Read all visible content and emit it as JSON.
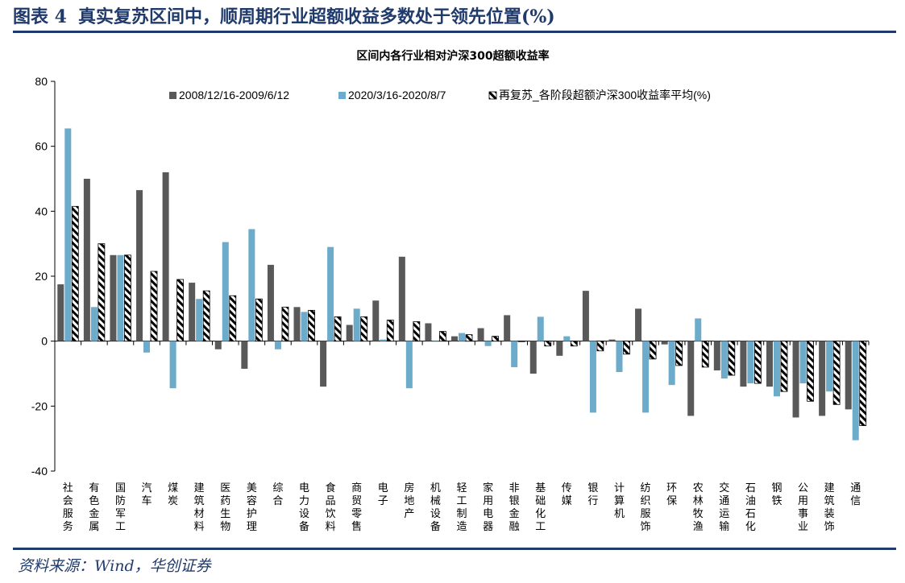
{
  "header": {
    "figure_no": "图表 4",
    "title": "真实复苏区间中，顺周期行业超额收益多数处于领先位置(%)"
  },
  "source": "资料来源：Wind，华创证券",
  "colors": {
    "header_blue": "#1f3a6b",
    "series_dark": "#595959",
    "series_light": "#6cabc9"
  },
  "chart_data": {
    "type": "bar",
    "title": "区间内各行业相对沪深300超额收益率",
    "xlabel": "",
    "ylabel": "",
    "ylim": [
      -40,
      80
    ],
    "yticks": [
      80,
      60,
      40,
      20,
      0,
      -20,
      -40
    ],
    "grid": false,
    "legend_position": "top",
    "categories": [
      "社会服务",
      "有色金属",
      "国防军工",
      "汽车",
      "煤炭",
      "建筑材料",
      "医药生物",
      "美容护理",
      "综合",
      "电力设备",
      "食品饮料",
      "商贸零售",
      "电子",
      "房地产",
      "机械设备",
      "轻工制造",
      "家用电器",
      "非银金融",
      "基础化工",
      "传媒",
      "银行",
      "计算机",
      "纺织服饰",
      "环保",
      "农林牧渔",
      "交通运输",
      "石油石化",
      "钢铁",
      "公用事业",
      "建筑装饰",
      "通信"
    ],
    "series": [
      {
        "name": "2008/12/16-2009/6/12",
        "style": "solid-dark",
        "values": [
          17.5,
          50,
          26.5,
          46.5,
          52,
          18,
          -2.5,
          -8.5,
          23.5,
          10.5,
          -14,
          5,
          12.5,
          26,
          5.5,
          1.5,
          4,
          8,
          -10,
          -4.5,
          15.5,
          0.5,
          10,
          -1,
          -23,
          -9,
          -14,
          -14,
          -23.5,
          -23,
          -21
        ]
      },
      {
        "name": "2020/3/16-2020/8/7",
        "style": "solid-light",
        "values": [
          65.5,
          10.5,
          26.5,
          -3.5,
          -14.5,
          13,
          30.5,
          34.5,
          -2.5,
          9,
          29,
          10,
          0.5,
          -14.5,
          0,
          2.5,
          -1.5,
          -8,
          7.5,
          1.5,
          -22,
          -9.5,
          -22,
          -13.5,
          7,
          -11.5,
          -13,
          -17,
          -13,
          -15.5,
          -30.5
        ]
      },
      {
        "name": "再复苏_各阶段超额沪深300收益率平均(%)",
        "style": "hatched",
        "values": [
          41.5,
          30,
          26.5,
          21.5,
          19,
          15.5,
          14,
          13,
          10.5,
          9.5,
          7.5,
          7.5,
          6.5,
          6,
          3,
          2,
          1.5,
          0,
          -1.5,
          -1.5,
          -3,
          -4,
          -5.5,
          -7.5,
          -8,
          -10.5,
          -13,
          -15.5,
          -18.5,
          -19.5,
          -26
        ]
      }
    ]
  }
}
